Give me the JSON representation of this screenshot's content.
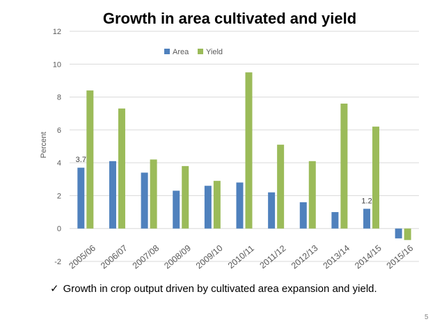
{
  "slide": {
    "title": "Growth in area cultivated and yield",
    "bullet_check": "✓",
    "bullet_text": "Growth in crop output driven by cultivated area expansion and yield.",
    "page_number": "5"
  },
  "colors": {
    "area": "#4F81BD",
    "yield": "#9BBB59",
    "gridline": "#D9D9D9"
  },
  "chart_data": {
    "type": "bar",
    "title": "Growth in area cultivated and yield",
    "xlabel": "",
    "ylabel": "Percent",
    "ylim": [
      -2,
      12
    ],
    "yticks": [
      -2,
      0,
      2,
      4,
      6,
      8,
      10,
      12
    ],
    "grid": true,
    "legend_position": "top-center",
    "categories": [
      "2005/06",
      "2006/07",
      "2007/08",
      "2008/09",
      "2009/10",
      "2010/11",
      "2011/12",
      "2012/13",
      "2013/14",
      "2014/15",
      "2015/16"
    ],
    "series": [
      {
        "name": "Area",
        "values": [
          3.7,
          4.1,
          3.4,
          2.3,
          2.6,
          2.8,
          2.2,
          1.6,
          1.0,
          1.2,
          -0.6
        ]
      },
      {
        "name": "Yield",
        "values": [
          8.4,
          7.3,
          4.2,
          3.8,
          2.9,
          9.5,
          5.1,
          4.1,
          7.6,
          6.2,
          -0.7
        ]
      }
    ],
    "data_labels": [
      {
        "series": "Area",
        "category": "2005/06",
        "text": "3.7"
      },
      {
        "series": "Area",
        "category": "2014/15",
        "text": "1.2"
      }
    ]
  }
}
